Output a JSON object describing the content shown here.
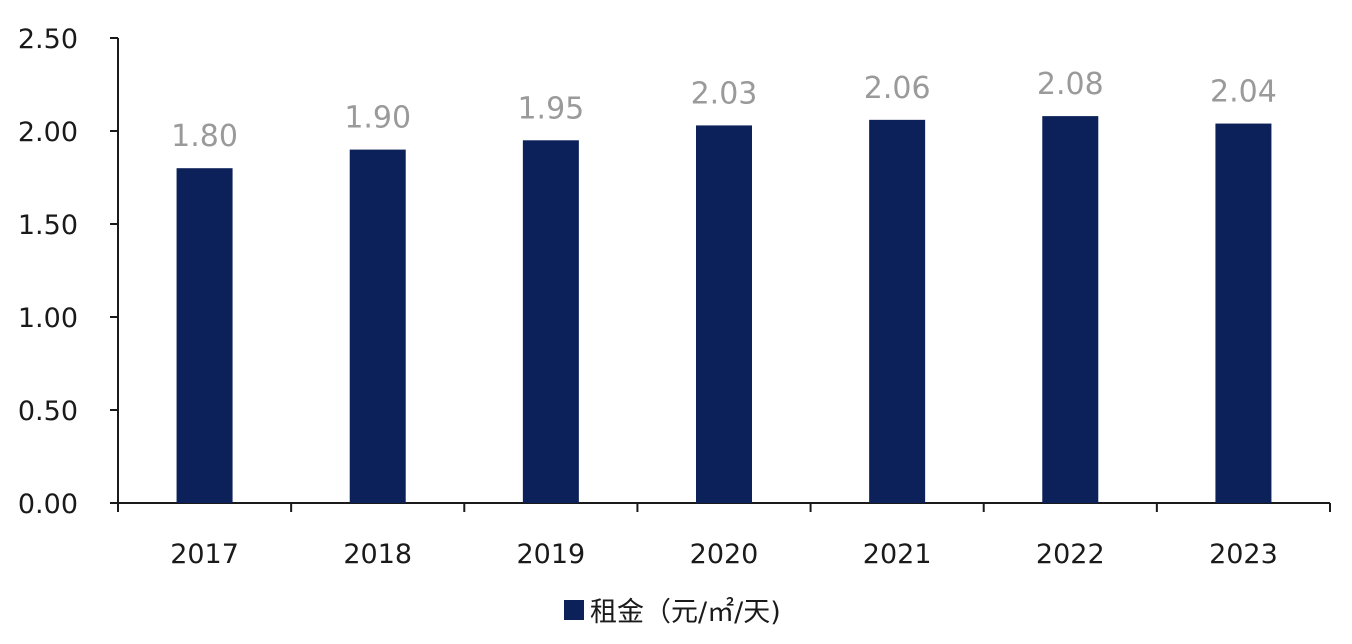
{
  "chart_data": {
    "type": "bar",
    "categories": [
      "2017",
      "2018",
      "2019",
      "2020",
      "2021",
      "2022",
      "2023"
    ],
    "series": [
      {
        "name": "租金（元/㎡/天)",
        "values": [
          1.8,
          1.9,
          1.95,
          2.03,
          2.06,
          2.08,
          2.04
        ],
        "color": "#0c2059"
      }
    ],
    "data_labels": [
      "1.80",
      "1.90",
      "1.95",
      "2.03",
      "2.06",
      "2.08",
      "2.04"
    ],
    "y_ticks": [
      "0.00",
      "0.50",
      "1.00",
      "1.50",
      "2.00",
      "2.50"
    ],
    "ylim": [
      0,
      2.5
    ],
    "title": "",
    "xlabel": "",
    "ylabel": "",
    "grid": false,
    "legend_position": "bottom",
    "data_label_color": "#9a9a9a",
    "axis_color": "#1a1a1a"
  }
}
